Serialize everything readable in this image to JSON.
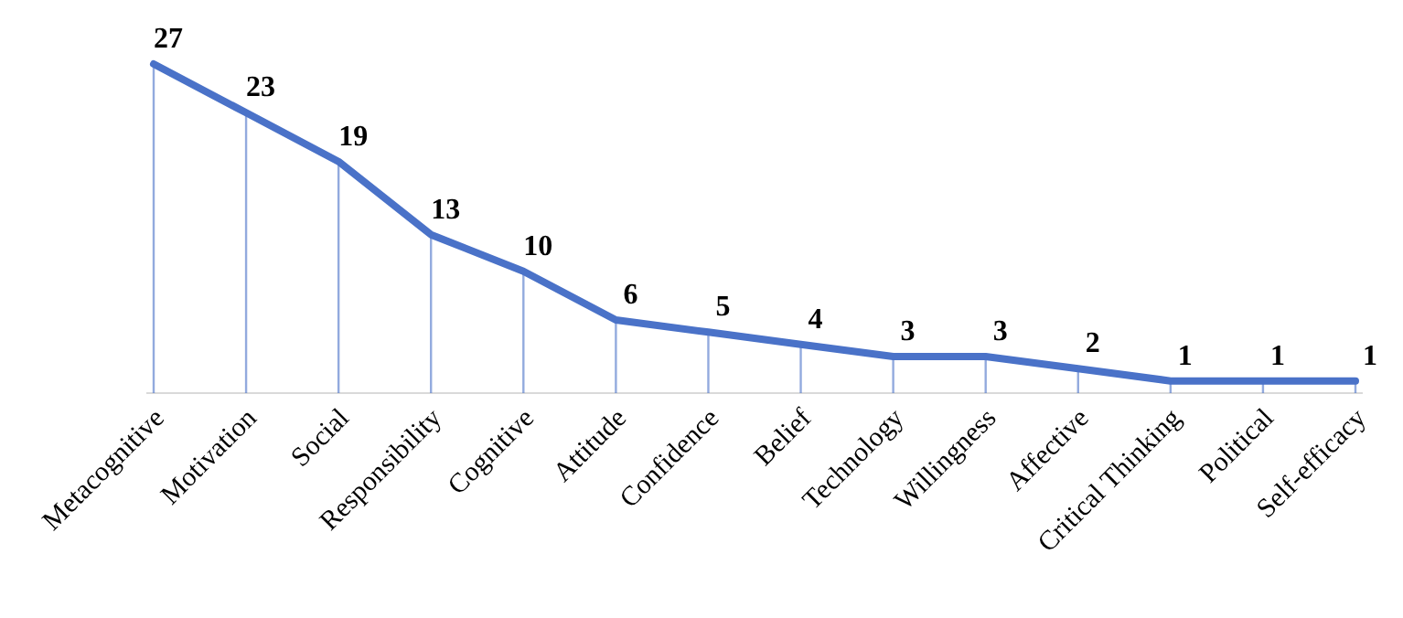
{
  "chart_data": {
    "type": "line",
    "categories": [
      "Metacognitive",
      "Motivation",
      "Social",
      "Responsibility",
      "Cognitive",
      "Attitude",
      "Confidence",
      "Belief",
      "Technology",
      "Willingness",
      "Affective",
      "Critical Thinking",
      "Political",
      "Self-efficacy"
    ],
    "series": [
      {
        "color": "#4a72c8",
        "values": [
          27,
          23,
          19,
          13,
          10,
          6,
          5,
          4,
          3,
          3,
          2,
          1,
          1,
          1
        ]
      }
    ],
    "data_labels": true,
    "marker": "none",
    "line_style": "solid",
    "grid": "x"
  }
}
